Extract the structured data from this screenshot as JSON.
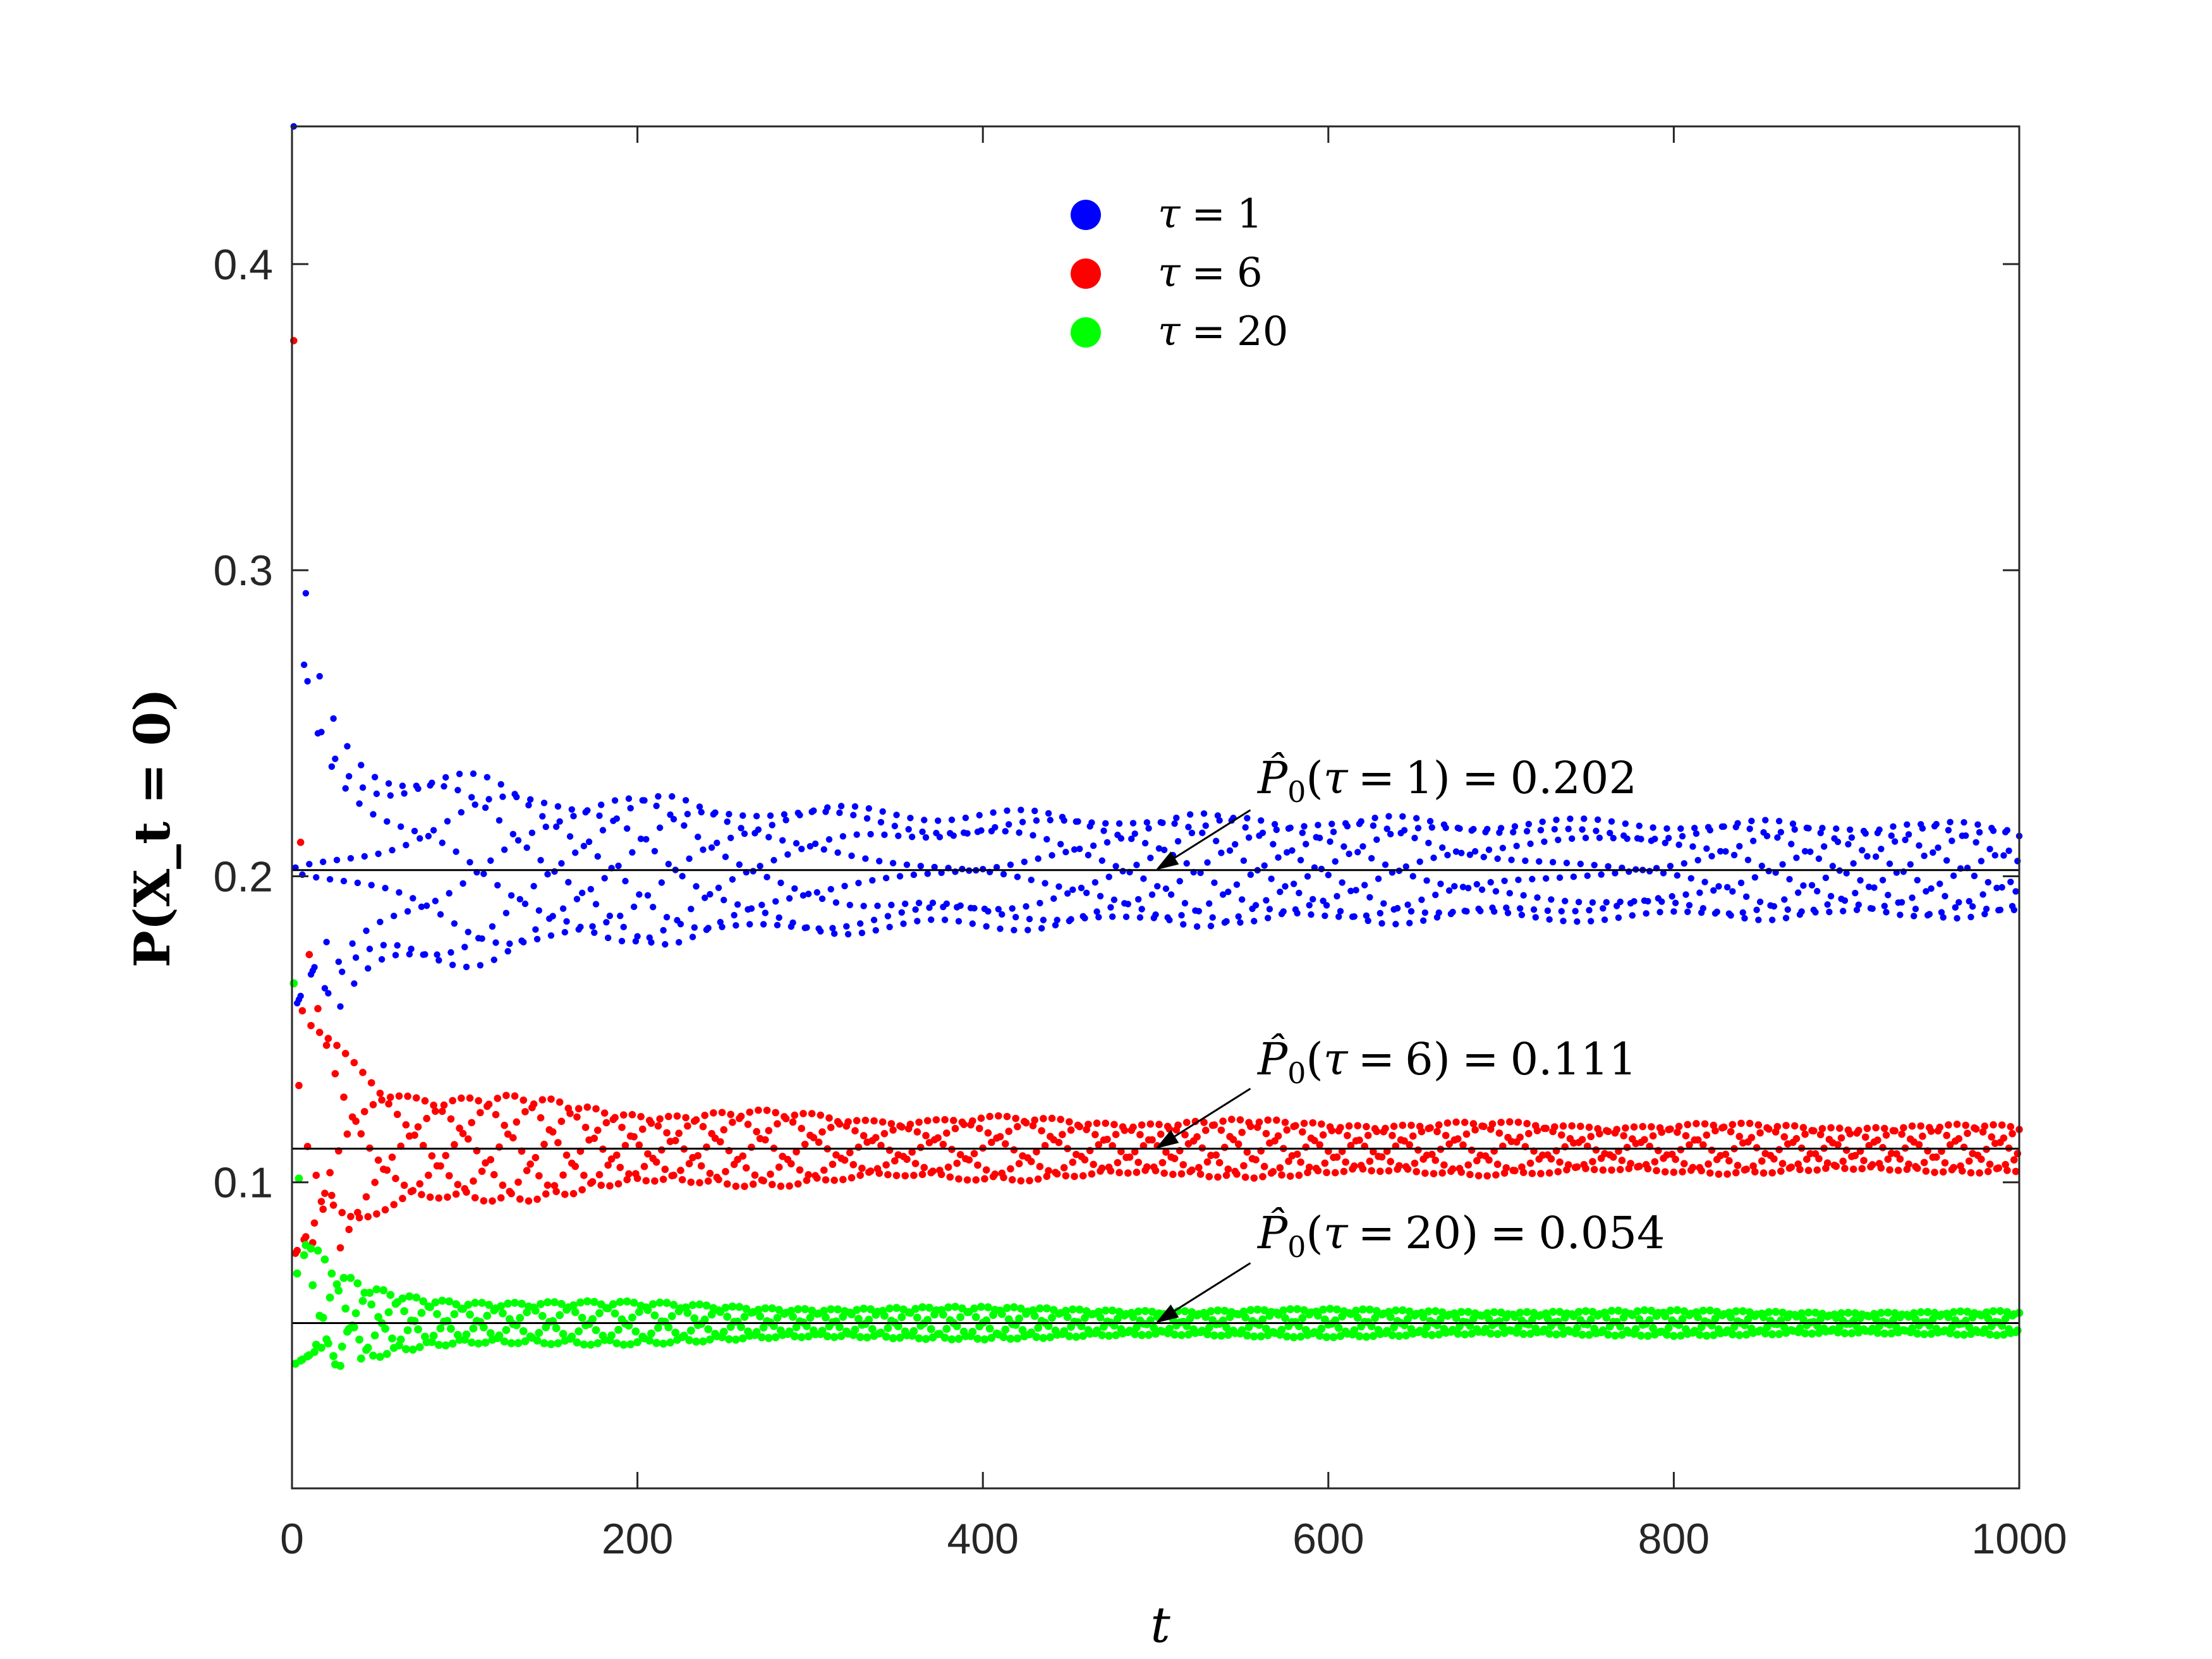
{
  "chart_data": {
    "type": "scatter",
    "xlabel": "t",
    "ylabel": "P(X_t = 0)",
    "xlim": [
      0,
      1000
    ],
    "ylim": [
      0,
      0.445
    ],
    "x_ticks": [
      0,
      200,
      400,
      600,
      800,
      1000
    ],
    "x_tick_labels": [
      "0",
      "200",
      "400",
      "600",
      "800",
      "1000"
    ],
    "y_ticks": [
      0.1,
      0.2,
      0.3,
      0.4
    ],
    "y_tick_labels": [
      "0.1",
      "0.2",
      "0.3",
      "0.4"
    ],
    "grid": false,
    "legend_position": "top-center",
    "series": [
      {
        "name": "τ = 1",
        "legend_symbol": "τ",
        "legend_value": "1",
        "color": "#0000ff",
        "tau": 1,
        "x_range": [
          1,
          1000
        ],
        "stationary": 0.202,
        "initial": 0.445,
        "min_envelope_at_start": 0.155,
        "final_half_amplitude": 0.008
      },
      {
        "name": "τ = 6",
        "legend_symbol": "τ",
        "legend_value": "6",
        "color": "#ff0000",
        "tau": 6,
        "x_range": [
          1,
          1000
        ],
        "stationary": 0.111,
        "initial": 0.375,
        "min_envelope_at_start": 0.075,
        "final_half_amplitude": 0.004
      },
      {
        "name": "τ = 20",
        "legend_symbol": "τ",
        "legend_value": "20",
        "color": "#00ff00",
        "tau": 20,
        "x_range": [
          1,
          1000
        ],
        "stationary": 0.054,
        "initial": 0.165,
        "min_envelope_at_start": 0.04,
        "final_half_amplitude": 0.002
      }
    ],
    "reference_lines": [
      {
        "y": 0.202,
        "color": "#000000"
      },
      {
        "y": 0.111,
        "color": "#000000"
      },
      {
        "y": 0.054,
        "color": "#000000"
      }
    ],
    "annotations": [
      {
        "prefix": "P̂",
        "subscript": "0",
        "tau_symbol": "τ",
        "tau_value": "1",
        "value": "0.202",
        "arrow_to": [
          500,
          0.202
        ]
      },
      {
        "prefix": "P̂",
        "subscript": "0",
        "tau_symbol": "τ",
        "tau_value": "6",
        "value": "0.111",
        "arrow_to": [
          500,
          0.111
        ]
      },
      {
        "prefix": "P̂",
        "subscript": "0",
        "tau_symbol": "τ",
        "tau_value": "20",
        "value": "0.054",
        "arrow_to": [
          500,
          0.054
        ]
      }
    ]
  }
}
